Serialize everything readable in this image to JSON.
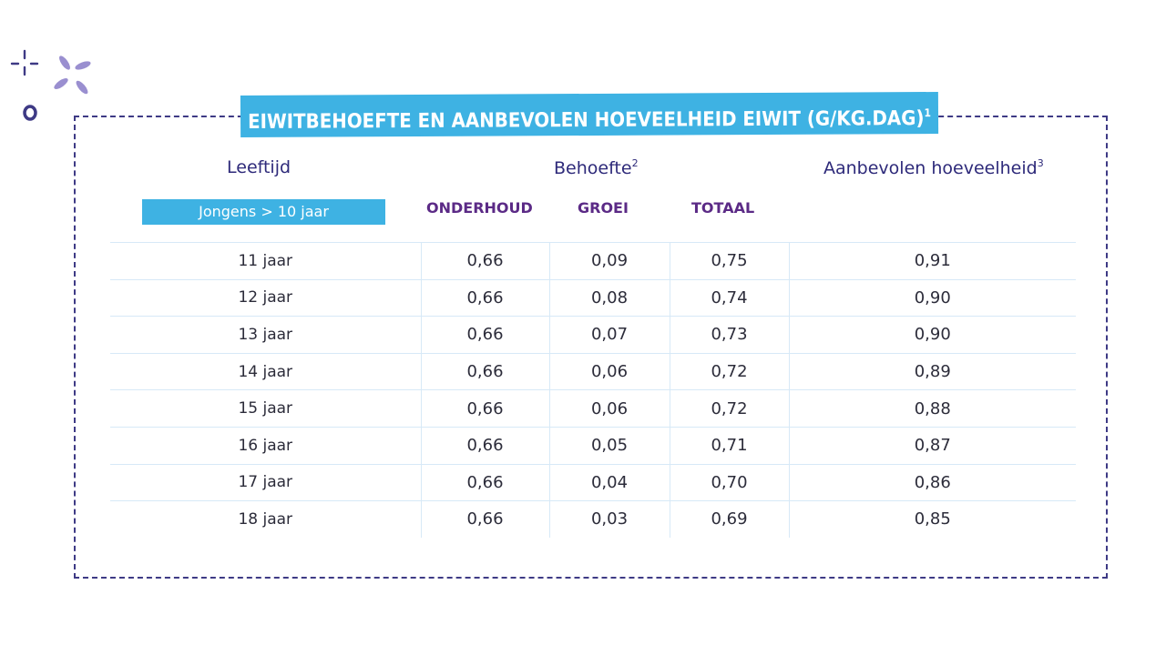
{
  "title": {
    "text": "EIWITBEHOEFTE EN AANBEVOLEN HOEVEELHEID EIWIT (G/KG.DAG)",
    "footnote": "1"
  },
  "headers": {
    "age": "Leeftijd",
    "need": "Behoefte",
    "need_footnote": "2",
    "recommended": "Aanbevolen hoeveelheid",
    "recommended_footnote": "3",
    "group": "Jongens  > 10 jaar",
    "maintenance": "ONDERHOUD",
    "growth": "GROEI",
    "total": "TOTAAL"
  },
  "rows": [
    {
      "age": "11 jaar",
      "maintenance": "0,66",
      "growth": "0,09",
      "total": "0,75",
      "recommended": "0,91"
    },
    {
      "age": "12 jaar",
      "maintenance": "0,66",
      "growth": "0,08",
      "total": "0,74",
      "recommended": "0,90"
    },
    {
      "age": "13 jaar",
      "maintenance": "0,66",
      "growth": "0,07",
      "total": "0,73",
      "recommended": "0,90"
    },
    {
      "age": "14 jaar",
      "maintenance": "0,66",
      "growth": "0,06",
      "total": "0,72",
      "recommended": "0,89"
    },
    {
      "age": "15 jaar",
      "maintenance": "0,66",
      "growth": "0,06",
      "total": "0,72",
      "recommended": "0,88"
    },
    {
      "age": "16 jaar",
      "maintenance": "0,66",
      "growth": "0,05",
      "total": "0,71",
      "recommended": "0,87"
    },
    {
      "age": "17 jaar",
      "maintenance": "0,66",
      "growth": "0,04",
      "total": "0,70",
      "recommended": "0,86"
    },
    {
      "age": "18 jaar",
      "maintenance": "0,66",
      "growth": "0,03",
      "total": "0,69",
      "recommended": "0,85"
    }
  ],
  "colors": {
    "accent_blue": "#3eb2e3",
    "navy": "#2e2a7a",
    "purple": "#5b2a86",
    "sparkle_light": "#9a8fd0",
    "frame": "#3e3a85"
  },
  "icons": [
    "sparkle-icon",
    "circle-icon"
  ]
}
